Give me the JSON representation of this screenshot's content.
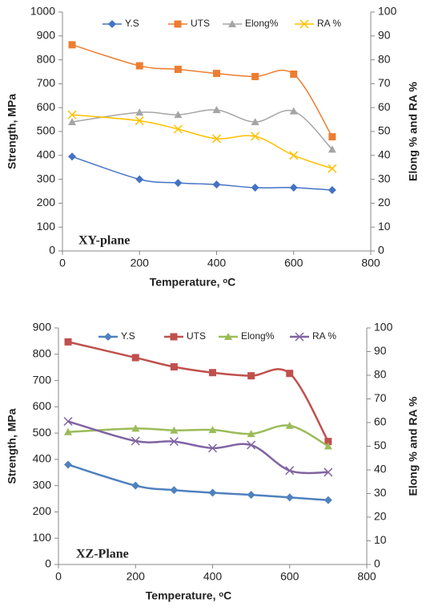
{
  "chart_data": [
    {
      "type": "line",
      "annotation": "XY-plane",
      "x_label": "Temperature, ᵒC",
      "y_label": "Strength, MPa",
      "y2_label": "Elong % and RA %",
      "x": [
        25,
        200,
        300,
        400,
        500,
        600,
        700
      ],
      "xlim": [
        0,
        800
      ],
      "xticks": [
        0,
        200,
        400,
        600,
        800
      ],
      "ylim": [
        0,
        1000
      ],
      "yticks": [
        0,
        100,
        200,
        300,
        400,
        500,
        600,
        700,
        800,
        900,
        1000
      ],
      "y2lim": [
        0,
        100
      ],
      "y2ticks": [
        0,
        10,
        20,
        30,
        40,
        50,
        60,
        70,
        80,
        90,
        100
      ],
      "line_width": 1.5,
      "series": [
        {
          "name": "Y.S",
          "color": "#4472c4",
          "marker": "diamond",
          "values": [
            395,
            300,
            285,
            278,
            265,
            265,
            255
          ]
        },
        {
          "name": "UTS",
          "color": "#ed7d31",
          "marker": "square",
          "values": [
            863,
            775,
            760,
            743,
            730,
            740,
            478
          ]
        },
        {
          "name": "Elong%",
          "color": "#a5a5a5",
          "marker": "triangle",
          "axis": "y2",
          "values": [
            54,
            58,
            57,
            59,
            54,
            58.5,
            42.5
          ]
        },
        {
          "name": "RA %",
          "color": "#ffc000",
          "marker": "x",
          "axis": "y2",
          "values": [
            57,
            54.5,
            51,
            47,
            48,
            40,
            34.5
          ]
        }
      ]
    },
    {
      "type": "line",
      "annotation": "XZ-Plane",
      "x_label": "Temperature, ᵒC",
      "y_label": "Strength, MPa",
      "y2_label": "Elong % and RA %",
      "x": [
        25,
        200,
        300,
        400,
        500,
        600,
        700
      ],
      "xlim": [
        0,
        800
      ],
      "xticks": [
        0,
        200,
        400,
        600,
        800
      ],
      "ylim": [
        0,
        900
      ],
      "yticks": [
        0,
        100,
        200,
        300,
        400,
        500,
        600,
        700,
        800,
        900
      ],
      "y2lim": [
        0,
        100
      ],
      "y2ticks": [
        0,
        10,
        20,
        30,
        40,
        50,
        60,
        70,
        80,
        90,
        100
      ],
      "line_width": 2.5,
      "series": [
        {
          "name": "Y.S",
          "color": "#4f81bd",
          "marker": "diamond",
          "values": [
            380,
            300,
            283,
            273,
            265,
            255,
            245
          ]
        },
        {
          "name": "UTS",
          "color": "#c0504d",
          "marker": "square",
          "values": [
            847,
            787,
            752,
            730,
            718,
            727,
            468
          ]
        },
        {
          "name": "Elong%",
          "color": "#9bbb59",
          "marker": "triangle",
          "axis": "y2",
          "values": [
            56,
            57.5,
            56.7,
            56.9,
            55.2,
            58.7,
            50
          ]
        },
        {
          "name": "RA %",
          "color": "#8064a2",
          "marker": "x",
          "axis": "y2",
          "values": [
            60.5,
            52.2,
            52,
            49.2,
            50.5,
            39.7,
            39
          ]
        }
      ]
    }
  ]
}
